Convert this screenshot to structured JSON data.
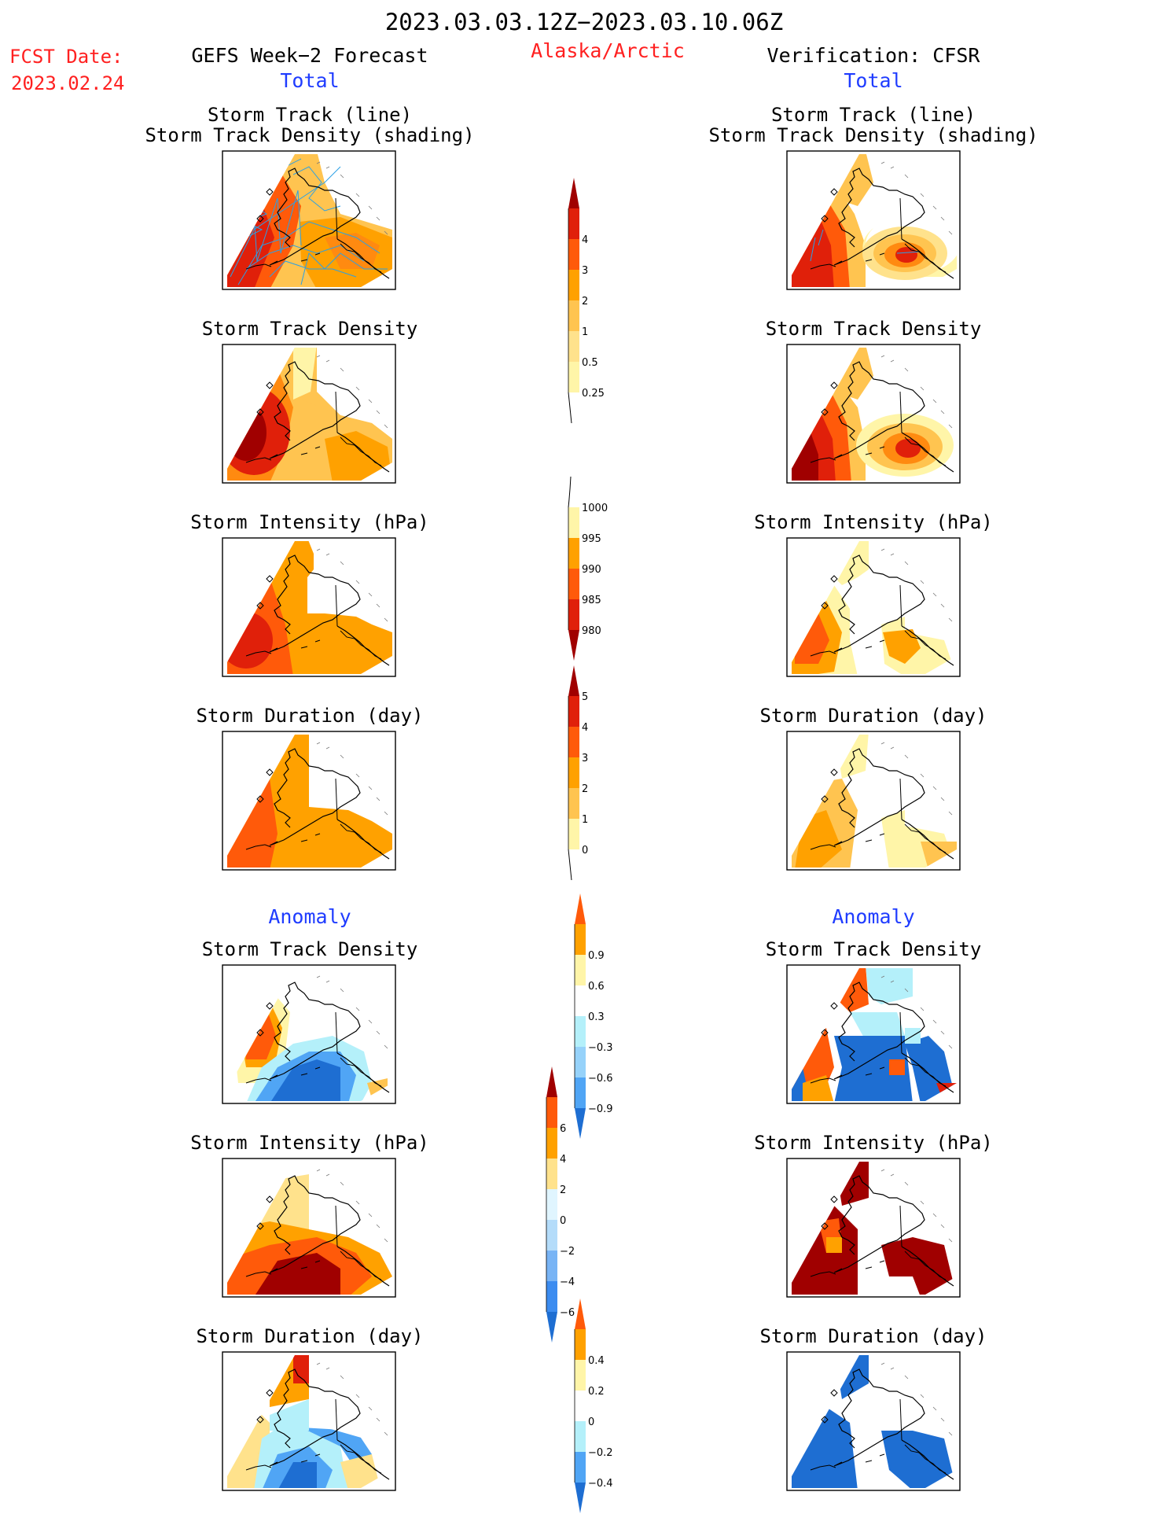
{
  "header": {
    "date_range": "2023.03.03.12Z−2023.03.10.06Z",
    "fcst_label": "FCST Date:",
    "fcst_date": "2023.02.24",
    "left_title": "GEFS Week−2 Forecast",
    "region": "Alaska/Arctic",
    "right_title": "Verification: CFSR",
    "total_label": "Total",
    "anomaly_label": "Anomaly"
  },
  "panel_titles": {
    "track_line": "Storm Track (line)",
    "track_shading": "Storm Track Density (shading)",
    "density": "Storm Track Density",
    "intensity": "Storm Intensity (hPa)",
    "duration": "Storm Duration (day)"
  },
  "colors": {
    "dark_red": "#a00000",
    "red": "#e0200a",
    "red_orange": "#ff5a0a",
    "orange": "#ffa100",
    "light_orange": "#ffc450",
    "pale_yellow": "#fff5a8",
    "pale_blue": "#b4f0fa",
    "light_blue": "#96d2fa",
    "mid_blue": "#50a5f5",
    "blue": "#1e6ed2",
    "track_line": "#2aa0e6"
  },
  "chart_data": [
    {
      "type": "heatmap",
      "title": "Storm Track (line) / Storm Track Density (shading)",
      "panel": "forecast_total",
      "overlay": "storm track lines",
      "colorbar": "density"
    },
    {
      "type": "heatmap",
      "title": "Storm Track (line) / Storm Track Density (shading)",
      "panel": "verification_total",
      "overlay": "storm track lines",
      "colorbar": "density"
    },
    {
      "type": "heatmap",
      "title": "Storm Track Density",
      "panel": "forecast_total",
      "colorbar": "density"
    },
    {
      "type": "heatmap",
      "title": "Storm Track Density",
      "panel": "verification_total",
      "colorbar": "density"
    },
    {
      "type": "heatmap",
      "title": "Storm Intensity (hPa)",
      "panel": "forecast_total",
      "colorbar": "intensity"
    },
    {
      "type": "heatmap",
      "title": "Storm Intensity (hPa)",
      "panel": "verification_total",
      "colorbar": "intensity"
    },
    {
      "type": "heatmap",
      "title": "Storm Duration (day)",
      "panel": "forecast_total",
      "colorbar": "duration"
    },
    {
      "type": "heatmap",
      "title": "Storm Duration (day)",
      "panel": "verification_total",
      "colorbar": "duration"
    },
    {
      "type": "heatmap",
      "title": "Storm Track Density",
      "panel": "forecast_anomaly",
      "colorbar": "density_anomaly"
    },
    {
      "type": "heatmap",
      "title": "Storm Track Density",
      "panel": "verification_anomaly",
      "colorbar": "density_anomaly"
    },
    {
      "type": "heatmap",
      "title": "Storm Intensity (hPa)",
      "panel": "forecast_anomaly",
      "colorbar": "intensity_anomaly"
    },
    {
      "type": "heatmap",
      "title": "Storm Intensity (hPa)",
      "panel": "verification_anomaly",
      "colorbar": "intensity_anomaly"
    },
    {
      "type": "heatmap",
      "title": "Storm Duration (day)",
      "panel": "forecast_anomaly",
      "colorbar": "duration_anomaly"
    },
    {
      "type": "heatmap",
      "title": "Storm Duration (day)",
      "panel": "verification_anomaly",
      "colorbar": "duration_anomaly"
    }
  ],
  "colorbars": {
    "density": {
      "levels": [
        "0.25",
        "0.5",
        "1",
        "2",
        "3",
        "4"
      ],
      "colors": [
        "#ffffff",
        "#fff5a8",
        "#ffe28c",
        "#ffc450",
        "#ffa100",
        "#ff5a0a",
        "#e0200a",
        "#a00000"
      ]
    },
    "intensity": {
      "levels": [
        "980",
        "985",
        "990",
        "995",
        "1000"
      ],
      "colors": [
        "#a00000",
        "#e0200a",
        "#ff5a0a",
        "#ffa100",
        "#fff5a8",
        "#ffffff"
      ]
    },
    "duration": {
      "levels": [
        "0",
        "1",
        "2",
        "3",
        "4",
        "5"
      ],
      "colors": [
        "#ffffff",
        "#fff5a8",
        "#ffc450",
        "#ffa100",
        "#ff5a0a",
        "#e0200a",
        "#a00000"
      ]
    },
    "density_anomaly": {
      "levels": [
        "−0.9",
        "−0.6",
        "−0.3",
        "0.3",
        "0.6",
        "0.9"
      ],
      "colors": [
        "#1e6ed2",
        "#50a5f5",
        "#96d2fa",
        "#b4f0fa",
        "#ffffff",
        "#fff5a8",
        "#ffa100",
        "#ff5a0a"
      ]
    },
    "intensity_anomaly": {
      "levels": [
        "−6",
        "−4",
        "−2",
        "0",
        "2",
        "4",
        "6"
      ],
      "colors": [
        "#1e6ed2",
        "#3c8cf0",
        "#78b4f5",
        "#b4dcfa",
        "#e0f5ff",
        "#ffe28c",
        "#ffa100",
        "#ff5a0a",
        "#a00000"
      ]
    },
    "duration_anomaly": {
      "levels": [
        "−0.4",
        "−0.2",
        "0",
        "0.2",
        "0.4"
      ],
      "colors": [
        "#1e6ed2",
        "#50a5f5",
        "#b4f0fa",
        "#ffffff",
        "#fff5a8",
        "#ffa100",
        "#ff5a0a"
      ]
    }
  }
}
